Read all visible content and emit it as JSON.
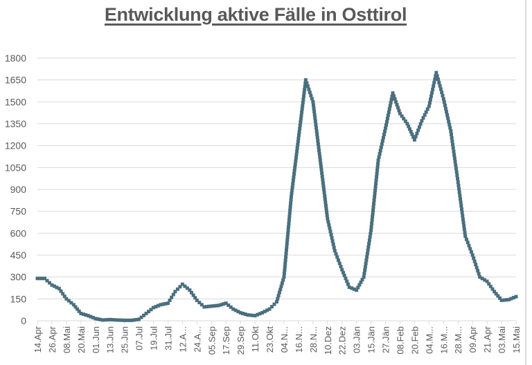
{
  "chart_data": {
    "type": "line",
    "title": "Entwicklung aktive Fälle in Osttirol",
    "xlabel": "",
    "ylabel": "",
    "ylim": [
      0,
      1800
    ],
    "yticks": [
      0,
      150,
      300,
      450,
      600,
      750,
      900,
      1050,
      1200,
      1350,
      1500,
      1650,
      1800
    ],
    "grid": true,
    "legend": null,
    "x_tick_labels": [
      "14.Apr",
      "26.Apr",
      "08.Mai",
      "20.Mai",
      "01.Jun",
      "13.Jun",
      "25.Jun",
      "07.Jul",
      "19.Jul",
      "31.Jul",
      "12.A...",
      "24.A...",
      "05.Sep",
      "17.Sep",
      "29.Sep",
      "11.Okt",
      "23.Okt",
      "04.N...",
      "16.N...",
      "28.N...",
      "10.Dez",
      "22.Dez",
      "03.Jän",
      "15.Jän",
      "27.Jän",
      "08.Feb",
      "20.Feb",
      "04.M...",
      "16.M...",
      "28.M...",
      "09.Apr",
      "21.Apr",
      "03.Mai",
      "15.Mai"
    ],
    "series": [
      {
        "name": "Aktive Fälle",
        "color": "#4a6f7f",
        "line_color": "#6b8e23",
        "points": [
          {
            "x": "14.Apr",
            "y": 290
          },
          {
            "x": "20.Apr",
            "y": 290
          },
          {
            "x": "26.Apr",
            "y": 245
          },
          {
            "x": "02.Mai",
            "y": 220
          },
          {
            "x": "08.Mai",
            "y": 150
          },
          {
            "x": "14.Mai",
            "y": 110
          },
          {
            "x": "20.Mai",
            "y": 50
          },
          {
            "x": "26.Mai",
            "y": 35
          },
          {
            "x": "01.Jun",
            "y": 15
          },
          {
            "x": "07.Jun",
            "y": 5
          },
          {
            "x": "13.Jun",
            "y": 8
          },
          {
            "x": "19.Jun",
            "y": 5
          },
          {
            "x": "25.Jun",
            "y": 3
          },
          {
            "x": "01.Jul",
            "y": 3
          },
          {
            "x": "07.Jul",
            "y": 10
          },
          {
            "x": "13.Jul",
            "y": 50
          },
          {
            "x": "19.Jul",
            "y": 90
          },
          {
            "x": "25.Jul",
            "y": 110
          },
          {
            "x": "31.Jul",
            "y": 120
          },
          {
            "x": "06.Aug",
            "y": 200
          },
          {
            "x": "12.Aug",
            "y": 250
          },
          {
            "x": "18.Aug",
            "y": 210
          },
          {
            "x": "24.Aug",
            "y": 140
          },
          {
            "x": "30.Aug",
            "y": 95
          },
          {
            "x": "05.Sep",
            "y": 100
          },
          {
            "x": "11.Sep",
            "y": 105
          },
          {
            "x": "17.Sep",
            "y": 120
          },
          {
            "x": "23.Sep",
            "y": 80
          },
          {
            "x": "29.Sep",
            "y": 55
          },
          {
            "x": "05.Okt",
            "y": 40
          },
          {
            "x": "11.Okt",
            "y": 35
          },
          {
            "x": "17.Okt",
            "y": 55
          },
          {
            "x": "23.Okt",
            "y": 80
          },
          {
            "x": "29.Okt",
            "y": 130
          },
          {
            "x": "04.Nov",
            "y": 300
          },
          {
            "x": "10.Nov",
            "y": 850
          },
          {
            "x": "16.Nov",
            "y": 1250
          },
          {
            "x": "22.Nov",
            "y": 1650
          },
          {
            "x": "28.Nov",
            "y": 1500
          },
          {
            "x": "04.Dez",
            "y": 1100
          },
          {
            "x": "10.Dez",
            "y": 700
          },
          {
            "x": "16.Dez",
            "y": 480
          },
          {
            "x": "22.Dez",
            "y": 350
          },
          {
            "x": "28.Dez",
            "y": 230
          },
          {
            "x": "03.Jän",
            "y": 210
          },
          {
            "x": "09.Jän",
            "y": 300
          },
          {
            "x": "15.Jän",
            "y": 620
          },
          {
            "x": "21.Jän",
            "y": 1100
          },
          {
            "x": "27.Jän",
            "y": 1320
          },
          {
            "x": "02.Feb",
            "y": 1560
          },
          {
            "x": "08.Feb",
            "y": 1420
          },
          {
            "x": "14.Feb",
            "y": 1350
          },
          {
            "x": "20.Feb",
            "y": 1240
          },
          {
            "x": "26.Feb",
            "y": 1370
          },
          {
            "x": "04.Mär",
            "y": 1470
          },
          {
            "x": "10.Mär",
            "y": 1700
          },
          {
            "x": "16.Mär",
            "y": 1520
          },
          {
            "x": "22.Mär",
            "y": 1300
          },
          {
            "x": "28.Mär",
            "y": 950
          },
          {
            "x": "03.Apr",
            "y": 580
          },
          {
            "x": "09.Apr",
            "y": 450
          },
          {
            "x": "15.Apr",
            "y": 300
          },
          {
            "x": "21.Apr",
            "y": 270
          },
          {
            "x": "27.Apr",
            "y": 200
          },
          {
            "x": "03.Mai",
            "y": 140
          },
          {
            "x": "09.Mai",
            "y": 145
          },
          {
            "x": "15.Mai",
            "y": 165
          }
        ]
      }
    ]
  },
  "page": {
    "title": "Entwicklung aktive Fälle in Osttirol"
  },
  "y_axis": {
    "labels": [
      "1800",
      "1650",
      "1500",
      "1350",
      "1200",
      "1050",
      "900",
      "750",
      "600",
      "450",
      "300",
      "150",
      "0"
    ]
  },
  "x_axis": {
    "labels": [
      "14.Apr",
      "26.Apr",
      "08.Mai",
      "20.Mai",
      "01.Jun",
      "13.Jun",
      "25.Jun",
      "07.Jul",
      "19.Jul",
      "31.Jul",
      "12.A...",
      "24.A...",
      "05.Sep",
      "17.Sep",
      "29.Sep",
      "11.Okt",
      "23.Okt",
      "04.N...",
      "16.N...",
      "28.N...",
      "10.Dez",
      "22.Dez",
      "03.Jän",
      "15.Jän",
      "27.Jän",
      "08.Feb",
      "20.Feb",
      "04.M...",
      "16.M...",
      "28.M...",
      "09.Apr",
      "21.Apr",
      "03.Mai",
      "15.Mai"
    ]
  }
}
